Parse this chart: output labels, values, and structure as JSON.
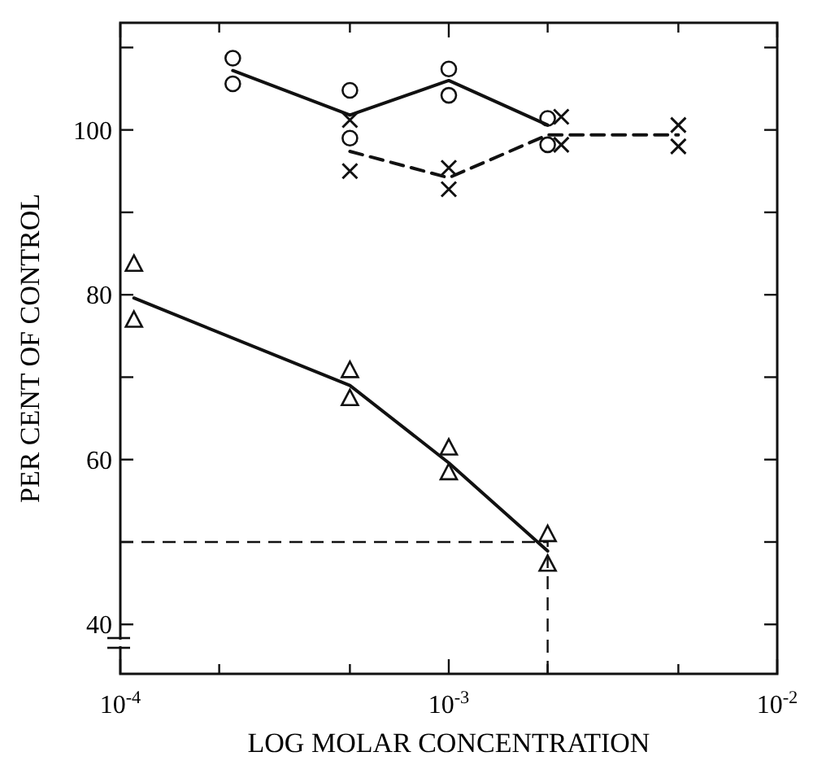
{
  "chart_data": {
    "type": "scatter",
    "xlabel": "LOG MOLAR CONCENTRATION",
    "ylabel": "PER CENT OF CONTROL",
    "log": "x",
    "xlim": [
      0.0001,
      0.01
    ],
    "ylim": [
      34,
      113
    ],
    "xticks": [
      {
        "value": 0.0001,
        "label": "10$^{-4}$"
      },
      {
        "value": 0.0002,
        "label": null
      },
      {
        "value": 0.0005,
        "label": null
      },
      {
        "value": 0.001,
        "label": "10$^{-3}$"
      },
      {
        "value": 0.002,
        "label": null
      },
      {
        "value": 0.005,
        "label": null
      },
      {
        "value": 0.01,
        "label": "10$^{-2}$"
      }
    ],
    "yticks": [
      40,
      {
        "value": 50,
        "label": null
      },
      60,
      {
        "value": 70,
        "label": null
      },
      80,
      {
        "value": 90,
        "label": null
      },
      100,
      {
        "value": 110,
        "label": null
      }
    ],
    "grid": false,
    "series": [
      {
        "type": "scatter",
        "marker": "circle",
        "color": "#111111",
        "x": [
          0.00022,
          0.00022,
          0.0005,
          0.0005,
          0.001,
          0.001,
          0.002,
          0.002
        ],
        "values": [
          108.7,
          105.6,
          104.8,
          99.0,
          107.4,
          104.2,
          101.4,
          98.2
        ]
      },
      {
        "type": "line",
        "line_style": "solid",
        "color": "#111111",
        "x": [
          0.00022,
          0.0005,
          0.001,
          0.002
        ],
        "values": [
          107.2,
          101.8,
          106.0,
          100.6
        ]
      },
      {
        "type": "scatter",
        "marker": "cross",
        "color": "#111111",
        "x": [
          0.0005,
          0.0005,
          0.001,
          0.001,
          0.0022,
          0.0022,
          0.005,
          0.005
        ],
        "values": [
          101.2,
          95.0,
          95.4,
          92.8,
          101.6,
          98.2,
          100.6,
          98.0
        ]
      },
      {
        "type": "line",
        "line_style": "dashed",
        "color": "#111111",
        "x": [
          0.0005,
          0.001,
          0.002,
          0.005
        ],
        "values": [
          97.4,
          94.2,
          99.4,
          99.4
        ]
      },
      {
        "type": "scatter",
        "marker": "triangle",
        "color": "#111111",
        "x": [
          0.00011,
          0.00011,
          0.0005,
          0.0005,
          0.001,
          0.001,
          0.002,
          0.002
        ],
        "values": [
          83.7,
          76.9,
          70.8,
          67.4,
          61.4,
          58.4,
          50.9,
          47.3
        ]
      },
      {
        "type": "line",
        "line_style": "solid",
        "color": "#111111",
        "x": [
          0.00011,
          0.0005,
          0.001,
          0.002
        ],
        "values": [
          79.6,
          69.0,
          59.6,
          48.9
        ]
      }
    ],
    "ref_lines": [
      {
        "axis": "y",
        "value": 50,
        "line_style": "dashed",
        "color": "#111111"
      },
      {
        "axis": "x",
        "value": 0.002,
        "line_style": "dashed",
        "color": "#111111"
      }
    ]
  }
}
